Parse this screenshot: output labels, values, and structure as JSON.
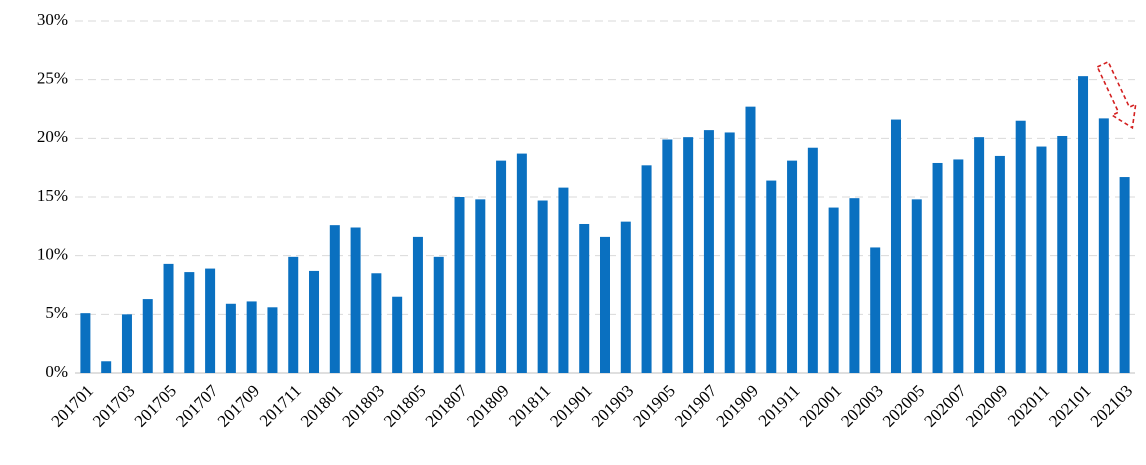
{
  "chart_data": {
    "type": "bar",
    "color": "#0a70c0",
    "grid": true,
    "categories": [
      "201701",
      null,
      "201703",
      null,
      "201705",
      null,
      "201707",
      null,
      "201709",
      null,
      "201711",
      null,
      "201801",
      null,
      "201803",
      null,
      "201805",
      null,
      "201807",
      null,
      "201809",
      null,
      "201811",
      null,
      "201901",
      null,
      "201903",
      null,
      "201905",
      null,
      "201907",
      null,
      "201909",
      null,
      "201911",
      null,
      "202001",
      null,
      "202003",
      null,
      "202005",
      null,
      "202007",
      null,
      "202009",
      null,
      "202011",
      null,
      "202101",
      null,
      "202103"
    ],
    "values": [
      5.1,
      1.0,
      5.0,
      6.3,
      9.3,
      8.6,
      8.9,
      5.9,
      6.1,
      5.6,
      9.9,
      8.7,
      12.6,
      12.4,
      8.5,
      6.5,
      11.6,
      9.9,
      15.0,
      14.8,
      18.1,
      18.7,
      14.7,
      15.8,
      12.7,
      11.6,
      12.9,
      17.7,
      19.9,
      20.1,
      20.7,
      20.5,
      22.7,
      16.4,
      18.1,
      19.2,
      14.1,
      14.9,
      10.7,
      21.6,
      14.8,
      17.9,
      18.2,
      20.1,
      18.5,
      21.5,
      19.3,
      20.2,
      25.3,
      21.7,
      16.7
    ],
    "ylim": [
      0,
      30
    ],
    "yticks": [
      {
        "value": 0,
        "label": "0%"
      },
      {
        "value": 5,
        "label": "5%"
      },
      {
        "value": 10,
        "label": "10%"
      },
      {
        "value": 15,
        "label": "15%"
      },
      {
        "value": 20,
        "label": "20%"
      },
      {
        "value": 25,
        "label": "25%"
      },
      {
        "value": 30,
        "label": "30%"
      }
    ]
  }
}
